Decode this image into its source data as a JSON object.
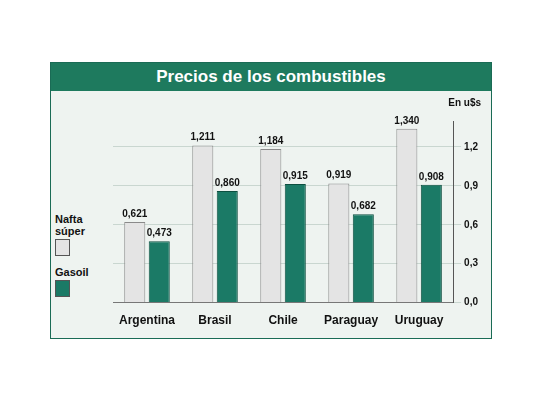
{
  "chart_data": {
    "type": "bar",
    "title": "Precios de los combustibles",
    "ylabel": "En u$s",
    "categories": [
      "Argentina",
      "Brasil",
      "Chile",
      "Paraguay",
      "Uruguay"
    ],
    "series": [
      {
        "name": "Nafta súper",
        "color": "#e4e4e4",
        "values": [
          0.621,
          1.211,
          1.184,
          0.919,
          1.34
        ],
        "value_labels": [
          "0,621",
          "1,211",
          "1,184",
          "0,919",
          "1,340"
        ]
      },
      {
        "name": "Gasoil",
        "color": "#1b7a66",
        "values": [
          0.473,
          0.86,
          0.915,
          0.682,
          0.908
        ],
        "value_labels": [
          "0,473",
          "0,860",
          "0,915",
          "0,682",
          "0,908"
        ]
      }
    ],
    "ylim": [
      0,
      1.4
    ],
    "yticks": [
      {
        "value": 0,
        "label": "0,0"
      },
      {
        "value": 0.3,
        "label": "0,3"
      },
      {
        "value": 0.6,
        "label": "0,6"
      },
      {
        "value": 0.9,
        "label": "0,9"
      },
      {
        "value": 1.2,
        "label": "1,2"
      }
    ],
    "grid": true,
    "legend": "left",
    "data_labels": true
  }
}
